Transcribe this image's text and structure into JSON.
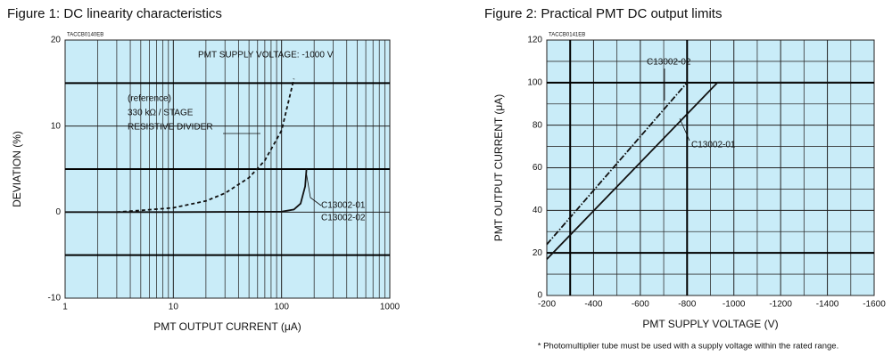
{
  "chart_data": [
    {
      "type": "line",
      "title": "Figure 1: DC linearity characteristics",
      "code": "TACCB0140EB",
      "x_label": "PMT OUTPUT CURRENT (μA)",
      "y_label": "DEVIATION (%)",
      "xscale": "log",
      "xlim": [
        1,
        1000
      ],
      "xticks": [
        1,
        10,
        100,
        1000
      ],
      "minor_xticks": [
        2,
        3,
        4,
        5,
        6,
        7,
        8,
        9,
        20,
        30,
        40,
        50,
        60,
        70,
        80,
        90,
        200,
        300,
        400,
        500,
        600,
        700,
        800,
        900
      ],
      "ylim": [
        -10,
        20
      ],
      "yticks": [
        -10,
        0,
        10,
        20
      ],
      "minor_yticks": [
        -5,
        5,
        15
      ],
      "highlight_y": [
        -5,
        5,
        15
      ],
      "background": "#c9ecf8",
      "grid": true,
      "series": [
        {
          "x": [
            3,
            5,
            10,
            20,
            30,
            50,
            70,
            100,
            130
          ],
          "values": [
            0,
            0.2,
            0.5,
            1.3,
            2.2,
            4,
            6,
            9.5,
            15.5
          ],
          "color": "#111111",
          "style": "dashed"
        },
        {
          "x": [
            1,
            10,
            100,
            130,
            150,
            165,
            170
          ],
          "values": [
            0,
            0,
            0.05,
            0.3,
            1,
            3,
            5
          ],
          "color": "#111111",
          "style": "solid"
        }
      ],
      "annotations": [
        "PMT SUPPLY VOLTAGE: -1000 V",
        "(reference)",
        "330 kΩ / STAGE",
        "RESISTIVE DIVIDER",
        "C13002-01",
        "C13002-02"
      ]
    },
    {
      "type": "line",
      "title": "Figure 2: Practical PMT DC output limits",
      "code": "TACCB0141EB",
      "x_label": "PMT SUPPLY VOLTAGE (V)",
      "y_label": "PMT OUTPUT CURRENT (μA)",
      "xlim": [
        -200,
        -1600
      ],
      "xticks": [
        -200,
        -400,
        -600,
        -800,
        -1000,
        -1200,
        -1400,
        -1600
      ],
      "minor_xticks": [
        -300,
        -500,
        -700,
        -900,
        -1100,
        -1300,
        -1500
      ],
      "ylim": [
        0,
        120
      ],
      "yticks": [
        0,
        20,
        40,
        60,
        80,
        100,
        120
      ],
      "minor_yticks": [
        10,
        30,
        50,
        70,
        90,
        110
      ],
      "highlight_x": [
        -300,
        -800
      ],
      "highlight_y": [
        20,
        100
      ],
      "background": "#c9ecf8",
      "grid": true,
      "series": [
        {
          "name": "C13002-02",
          "x": [
            -200,
            -800
          ],
          "values": [
            24,
            100
          ],
          "color": "#111111",
          "style": "dashdot"
        },
        {
          "name": "C13002-01",
          "x": [
            -200,
            -930,
            -1500
          ],
          "values": [
            17,
            100,
            100
          ],
          "color": "#111111",
          "style": "solid"
        }
      ],
      "footnote": "* Photomultiplier tube must be used with a supply voltage within the rated range."
    }
  ]
}
